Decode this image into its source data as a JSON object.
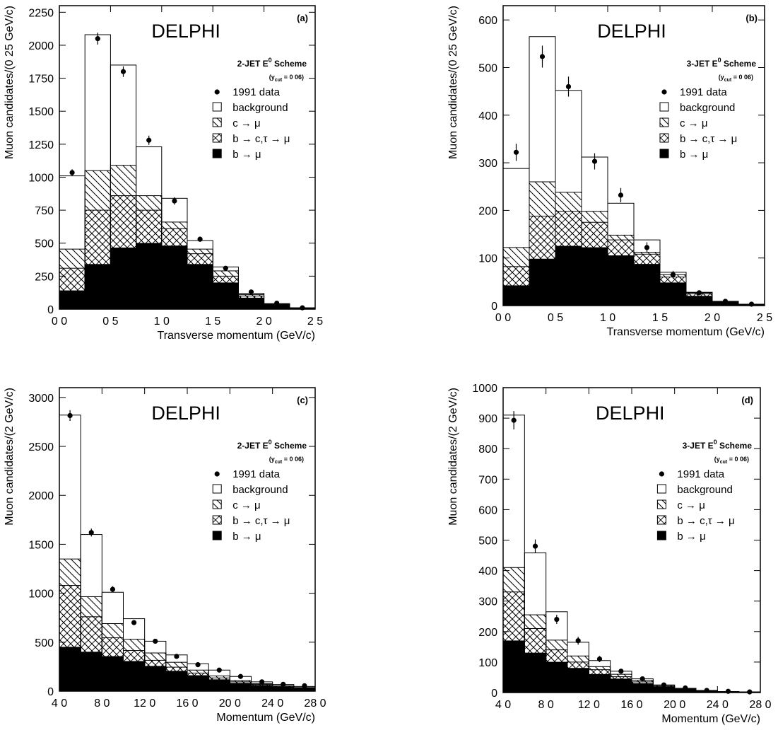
{
  "legend_labels": {
    "data": "1991 data",
    "bg": "background",
    "c": "c → μ",
    "b2": "b → c,τ → μ",
    "b": "b → μ"
  },
  "ycut_text": "(y",
  "ycut_sub": "cut",
  "ycut_val": " = 0 06)",
  "chart_data": [
    {
      "type": "bar",
      "panel": "(a)",
      "experiment": "DELPHI",
      "scheme": "2-JET E",
      "scheme_sup": "0",
      "scheme_suffix": " Scheme",
      "xlabel": "Transverse momentum (GeV/c)",
      "ylabel": "Muon candidates/(0 25 GeV/c)",
      "xlim": [
        0,
        2.5
      ],
      "ylim": [
        0,
        2300
      ],
      "xticks": [
        0,
        0.5,
        1.0,
        1.5,
        2.0,
        2.5
      ],
      "xticklabels": [
        "0 0",
        "0 5",
        "1 0",
        "1 5",
        "2 0",
        "2 5"
      ],
      "yticks": [
        0,
        250,
        500,
        750,
        1000,
        1250,
        1500,
        1750,
        2000,
        2250
      ],
      "yticklabels": [
        "0",
        "250",
        "500",
        "750",
        "1000",
        "1250",
        "1500",
        "1750",
        "2000",
        "2250"
      ],
      "bin_edges": [
        0,
        0.25,
        0.5,
        0.75,
        1.0,
        1.25,
        1.5,
        1.75,
        2.0,
        2.25,
        2.5
      ],
      "series": [
        {
          "name": "b → μ",
          "values": [
            140,
            340,
            465,
            500,
            480,
            340,
            200,
            85,
            35,
            8
          ]
        },
        {
          "name": "b → c,τ → μ",
          "values": [
            310,
            750,
            860,
            750,
            610,
            420,
            250,
            100,
            38,
            9
          ]
        },
        {
          "name": "c → μ",
          "values": [
            455,
            1050,
            1090,
            860,
            660,
            455,
            290,
            110,
            40,
            10
          ]
        },
        {
          "name": "background",
          "values": [
            1010,
            2080,
            1850,
            1230,
            840,
            520,
            320,
            120,
            42,
            10
          ]
        }
      ],
      "data_points": {
        "name": "1991 data",
        "x": [
          0.125,
          0.375,
          0.625,
          0.875,
          1.125,
          1.375,
          1.625,
          1.875,
          2.125,
          2.375
        ],
        "y": [
          1035,
          2050,
          1800,
          1280,
          820,
          530,
          310,
          130,
          45,
          10
        ],
        "err": [
          25,
          45,
          40,
          35,
          28,
          20,
          15,
          10,
          6,
          3
        ]
      }
    },
    {
      "type": "bar",
      "panel": "(b)",
      "experiment": "DELPHI",
      "scheme": "3-JET E",
      "scheme_sup": "0",
      "scheme_suffix": " Scheme",
      "xlabel": "Transverse momentum (GeV/c)",
      "ylabel": "Muon candidates/(0 25 GeV/c)",
      "xlim": [
        0,
        2.5
      ],
      "ylim": [
        0,
        630
      ],
      "xticks": [
        0,
        0.5,
        1.0,
        1.5,
        2.0,
        2.5
      ],
      "xticklabels": [
        "0 0",
        "0 5",
        "1 0",
        "1 5",
        "2 0",
        "2 5"
      ],
      "yticks": [
        0,
        100,
        200,
        300,
        400,
        500,
        600
      ],
      "yticklabels": [
        "0",
        "100",
        "200",
        "300",
        "400",
        "500",
        "600"
      ],
      "bin_edges": [
        0,
        0.25,
        0.5,
        0.75,
        1.0,
        1.25,
        1.5,
        1.75,
        2.0,
        2.25,
        2.5
      ],
      "series": [
        {
          "name": "b → μ",
          "values": [
            42,
            98,
            125,
            122,
            105,
            87,
            48,
            20,
            7,
            2
          ]
        },
        {
          "name": "b → c,τ → μ",
          "values": [
            82,
            188,
            198,
            175,
            138,
            108,
            60,
            25,
            8,
            2
          ]
        },
        {
          "name": "c → μ",
          "values": [
            122,
            260,
            238,
            198,
            148,
            112,
            65,
            27,
            9,
            3
          ]
        },
        {
          "name": "background",
          "values": [
            288,
            565,
            452,
            312,
            215,
            138,
            70,
            28,
            9,
            3
          ]
        }
      ],
      "data_points": {
        "name": "1991 data",
        "x": [
          0.125,
          0.375,
          0.625,
          0.875,
          1.125,
          1.375,
          1.625,
          1.875,
          2.125,
          2.375
        ],
        "y": [
          322,
          523,
          460,
          303,
          232,
          122,
          65,
          27,
          9,
          3
        ],
        "err": [
          18,
          23,
          21,
          17,
          15,
          11,
          8,
          5,
          3,
          2
        ]
      }
    },
    {
      "type": "bar",
      "panel": "(c)",
      "experiment": "DELPHI",
      "scheme": "2-JET E",
      "scheme_sup": "0",
      "scheme_suffix": " Scheme",
      "xlabel": "Momentum (GeV/c)",
      "ylabel": "Muon candidates/(2 GeV/c)",
      "xlim": [
        4,
        28
      ],
      "ylim": [
        0,
        3100
      ],
      "xticks": [
        4,
        8,
        12,
        16,
        20,
        24,
        28
      ],
      "xticklabels": [
        "4 0",
        "8 0",
        "12 0",
        "16 0",
        "20 0",
        "24 0",
        "28 0"
      ],
      "yticks": [
        0,
        500,
        1000,
        1500,
        2000,
        2500,
        3000
      ],
      "yticklabels": [
        "0",
        "500",
        "1000",
        "1500",
        "2000",
        "2500",
        "3000"
      ],
      "bin_edges": [
        4,
        6,
        8,
        10,
        12,
        14,
        16,
        18,
        20,
        22,
        24,
        26,
        28
      ],
      "series": [
        {
          "name": "b → μ",
          "values": [
            450,
            400,
            355,
            305,
            255,
            205,
            160,
            118,
            82,
            60,
            42,
            30
          ]
        },
        {
          "name": "b → c,τ → μ",
          "values": [
            1080,
            760,
            545,
            415,
            315,
            245,
            185,
            135,
            95,
            68,
            48,
            33
          ]
        },
        {
          "name": "c → μ",
          "values": [
            1350,
            965,
            690,
            530,
            390,
            295,
            215,
            155,
            108,
            76,
            54,
            37
          ]
        },
        {
          "name": "background",
          "values": [
            2820,
            1600,
            1010,
            740,
            510,
            370,
            280,
            215,
            150,
            95,
            68,
            48
          ]
        }
      ],
      "data_points": {
        "name": "1991 data",
        "x": [
          5,
          7,
          9,
          11,
          13,
          15,
          17,
          19,
          21,
          23,
          25,
          27
        ],
        "y": [
          2815,
          1620,
          1040,
          700,
          510,
          355,
          270,
          215,
          150,
          95,
          70,
          55
        ],
        "err": [
          55,
          40,
          32,
          26,
          22,
          19,
          16,
          14,
          12,
          10,
          8,
          7
        ]
      }
    },
    {
      "type": "bar",
      "panel": "(d)",
      "experiment": "DELPHI",
      "scheme": "3-JET E",
      "scheme_sup": "0",
      "scheme_suffix": " Scheme",
      "xlabel": "Momentum (GeV/c)",
      "ylabel": "Muon candidates/(2 GeV/c)",
      "xlim": [
        4,
        28
      ],
      "ylim": [
        0,
        1000
      ],
      "xticks": [
        4,
        8,
        12,
        16,
        20,
        24,
        28
      ],
      "xticklabels": [
        "4 0",
        "8 0",
        "12 0",
        "16 0",
        "20 0",
        "24 0",
        "28 0"
      ],
      "yticks": [
        0,
        100,
        200,
        300,
        400,
        500,
        600,
        700,
        800,
        900,
        1000
      ],
      "yticklabels": [
        "0",
        "100",
        "200",
        "300",
        "400",
        "500",
        "600",
        "700",
        "800",
        "900",
        "1000"
      ],
      "bin_edges": [
        4,
        6,
        8,
        10,
        12,
        14,
        16,
        18,
        20,
        22,
        24,
        26,
        28
      ],
      "series": [
        {
          "name": "b → μ",
          "values": [
            170,
            130,
            100,
            80,
            60,
            45,
            30,
            18,
            10,
            5,
            3,
            2
          ]
        },
        {
          "name": "b → c,τ → μ",
          "values": [
            330,
            210,
            140,
            100,
            75,
            52,
            35,
            20,
            11,
            5,
            3,
            2
          ]
        },
        {
          "name": "c → μ",
          "values": [
            410,
            255,
            172,
            120,
            85,
            60,
            40,
            23,
            12,
            6,
            3,
            2
          ]
        },
        {
          "name": "background",
          "values": [
            910,
            458,
            265,
            165,
            105,
            70,
            45,
            25,
            14,
            7,
            3,
            2
          ]
        }
      ],
      "data_points": {
        "name": "1991 data",
        "x": [
          5,
          7,
          9,
          11,
          13,
          15,
          17,
          19,
          21,
          23,
          25,
          27
        ],
        "y": [
          893,
          480,
          240,
          170,
          110,
          70,
          45,
          25,
          15,
          7,
          4,
          2
        ],
        "err": [
          30,
          22,
          15,
          13,
          10,
          8,
          7,
          5,
          4,
          3,
          2,
          1
        ]
      }
    }
  ]
}
